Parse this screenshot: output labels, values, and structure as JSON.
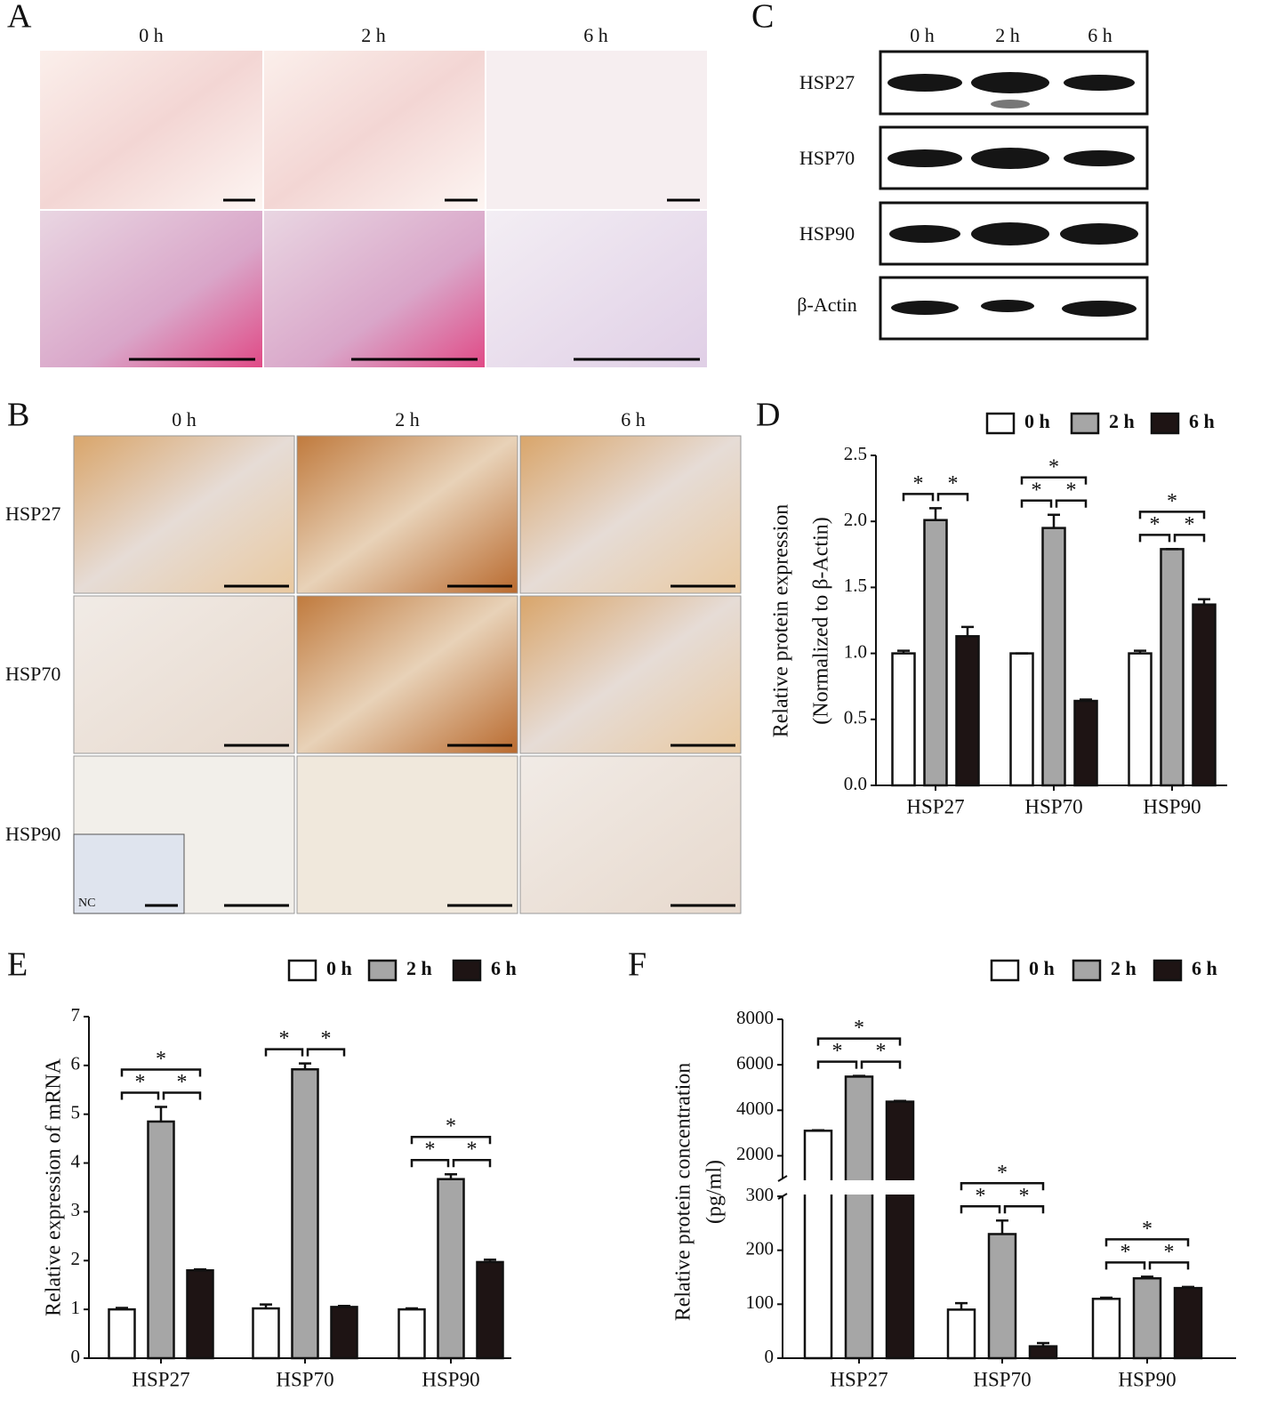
{
  "panels": {
    "A": {
      "label": "A",
      "columns": [
        "0 h",
        "2 h",
        "6 h"
      ]
    },
    "B": {
      "label": "B",
      "columns": [
        "0 h",
        "2 h",
        "6 h"
      ],
      "rows": [
        "HSP27",
        "HSP70",
        "HSP90"
      ],
      "inset": "NC"
    },
    "C": {
      "label": "C",
      "columns": [
        "0 h",
        "2 h",
        "6 h"
      ],
      "rows": [
        "HSP27",
        "HSP70",
        "HSP90",
        "β-Actin"
      ]
    }
  },
  "chart_data": [
    {
      "type": "bar",
      "panel": "D",
      "ylabel": [
        "Relative protein expression",
        "(Normalized to β-Actin)"
      ],
      "categories": [
        "HSP27",
        "HSP70",
        "HSP90"
      ],
      "legend": "top",
      "series": [
        {
          "name": "0 h",
          "color": "#ffffff",
          "values": [
            1.0,
            1.0,
            1.0
          ],
          "errors": [
            0.02,
            0.0,
            0.02
          ]
        },
        {
          "name": "2 h",
          "color": "#a6a6a6",
          "values": [
            2.01,
            1.95,
            1.79
          ],
          "errors": [
            0.09,
            0.1,
            0.0
          ]
        },
        {
          "name": "6 h",
          "color": "#1e1414",
          "values": [
            1.13,
            0.64,
            1.37
          ],
          "errors": [
            0.07,
            0.01,
            0.04
          ]
        }
      ],
      "ylim": [
        0,
        2.5
      ],
      "yticks": [
        {
          "value": 0,
          "label": "0.0"
        },
        0.5,
        {
          "value": 1,
          "label": "1.0"
        },
        1.5,
        {
          "value": 2,
          "label": "2.0"
        },
        2.5
      ],
      "significance": [
        {
          "category": 0,
          "series": [
            0,
            1
          ],
          "label": "*"
        },
        {
          "category": 0,
          "series": [
            1,
            2
          ],
          "label": "*"
        },
        {
          "category": 1,
          "series": [
            0,
            1
          ],
          "label": "*"
        },
        {
          "category": 1,
          "series": [
            1,
            2
          ],
          "label": "*"
        },
        {
          "category": 1,
          "series": [
            0,
            2
          ],
          "label": "*"
        },
        {
          "category": 2,
          "series": [
            0,
            1
          ],
          "label": "*"
        },
        {
          "category": 2,
          "series": [
            1,
            2
          ],
          "label": "*"
        },
        {
          "category": 2,
          "series": [
            0,
            2
          ],
          "label": "*"
        }
      ]
    },
    {
      "type": "bar",
      "panel": "E",
      "ylabel": [
        "Relative expression of mRNA"
      ],
      "categories": [
        "HSP27",
        "HSP70",
        "HSP90"
      ],
      "legend": "top",
      "series": [
        {
          "name": "0 h",
          "color": "#ffffff",
          "values": [
            1.0,
            1.02,
            1.0
          ],
          "errors": [
            0.03,
            0.08,
            0.02
          ]
        },
        {
          "name": "2 h",
          "color": "#a6a6a6",
          "values": [
            4.85,
            5.92,
            3.67
          ],
          "errors": [
            0.3,
            0.12,
            0.1
          ]
        },
        {
          "name": "6 h",
          "color": "#1e1414",
          "values": [
            1.8,
            1.05,
            1.97
          ],
          "errors": [
            0.02,
            0.02,
            0.05
          ]
        }
      ],
      "ylim": [
        0,
        7
      ],
      "yticks": [
        0,
        1,
        2,
        3,
        4,
        5,
        6,
        7
      ],
      "significance": [
        {
          "category": 0,
          "series": [
            0,
            1
          ],
          "label": "*"
        },
        {
          "category": 0,
          "series": [
            1,
            2
          ],
          "label": "*"
        },
        {
          "category": 0,
          "series": [
            0,
            2
          ],
          "label": "*"
        },
        {
          "category": 1,
          "series": [
            0,
            1
          ],
          "label": "*"
        },
        {
          "category": 1,
          "series": [
            1,
            2
          ],
          "label": "*"
        },
        {
          "category": 2,
          "series": [
            0,
            1
          ],
          "label": "*"
        },
        {
          "category": 2,
          "series": [
            1,
            2
          ],
          "label": "*"
        },
        {
          "category": 2,
          "series": [
            0,
            2
          ],
          "label": "*"
        }
      ]
    },
    {
      "type": "bar",
      "panel": "F",
      "ylabel": [
        "Relative protein concentration",
        "(pg/ml)"
      ],
      "categories": [
        "HSP27",
        "HSP70",
        "HSP90"
      ],
      "legend": "top",
      "series": [
        {
          "name": "0 h",
          "color": "#ffffff",
          "values": [
            3100,
            90,
            110
          ],
          "errors": [
            20,
            12,
            2
          ]
        },
        {
          "name": "2 h",
          "color": "#a6a6a6",
          "values": [
            5480,
            230,
            148
          ],
          "errors": [
            30,
            25,
            3
          ]
        },
        {
          "name": "6 h",
          "color": "#1e1414",
          "values": [
            4380,
            22,
            130
          ],
          "errors": [
            30,
            6,
            2
          ]
        }
      ],
      "ylim": [
        0,
        8000
      ],
      "ybreak": [
        300,
        1000
      ],
      "yticks": [
        0,
        100,
        200,
        300,
        2000,
        4000,
        6000,
        8000
      ],
      "significance": [
        {
          "category": 0,
          "series": [
            0,
            1
          ],
          "label": "*"
        },
        {
          "category": 0,
          "series": [
            1,
            2
          ],
          "label": "*"
        },
        {
          "category": 0,
          "series": [
            0,
            2
          ],
          "label": "*"
        },
        {
          "category": 1,
          "series": [
            0,
            1
          ],
          "label": "*"
        },
        {
          "category": 1,
          "series": [
            1,
            2
          ],
          "label": "*"
        },
        {
          "category": 1,
          "series": [
            0,
            2
          ],
          "label": "*"
        },
        {
          "category": 2,
          "series": [
            0,
            1
          ],
          "label": "*"
        },
        {
          "category": 2,
          "series": [
            1,
            2
          ],
          "label": "*"
        },
        {
          "category": 2,
          "series": [
            0,
            2
          ],
          "label": "*"
        }
      ]
    }
  ]
}
